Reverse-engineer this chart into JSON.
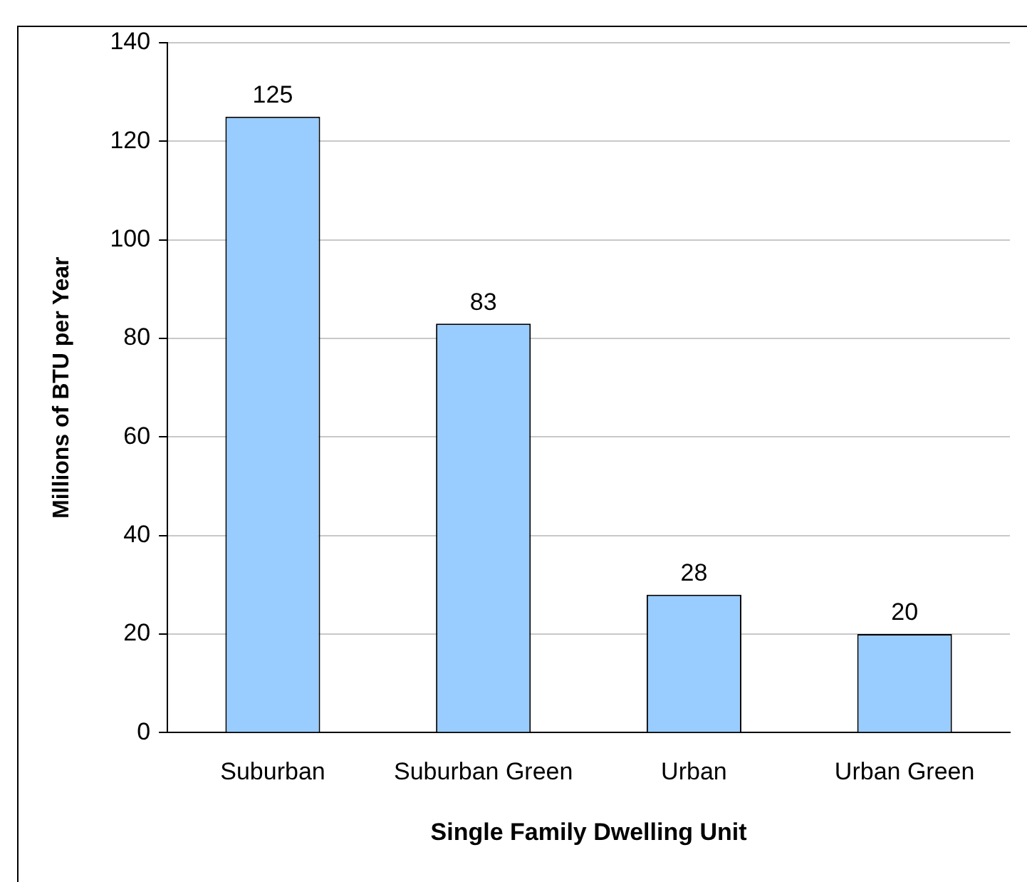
{
  "chart_data": {
    "type": "bar",
    "xlabel": "Single Family Dwelling Unit",
    "ylabel": "Millions of BTU per Year",
    "categories": [
      "Suburban",
      "Suburban Green",
      "Urban",
      "Urban Green"
    ],
    "values": [
      125,
      83,
      28,
      20
    ],
    "color": "#99ccff",
    "ylim": [
      0,
      140
    ],
    "yticks": [
      0,
      20,
      40,
      60,
      80,
      100,
      120,
      140
    ],
    "grid": "y",
    "data_labels": true,
    "legend": false
  }
}
